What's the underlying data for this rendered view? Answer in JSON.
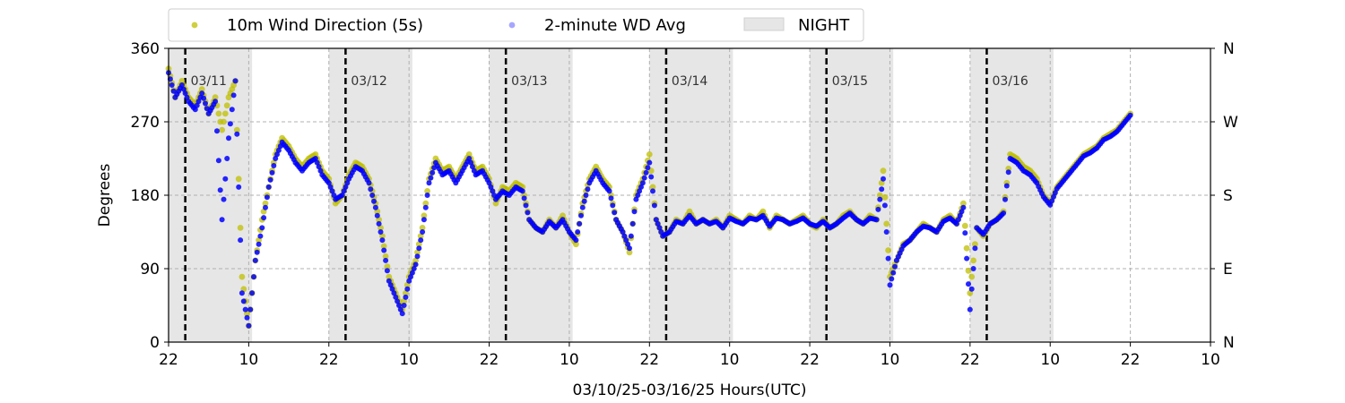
{
  "chart_data": {
    "type": "scatter",
    "xlabel": "03/10/25-03/16/25  Hours(UTC)",
    "ylabel": "Degrees",
    "x_unit": "hours",
    "xlim": [
      -2,
      154
    ],
    "ylim": [
      0,
      360
    ],
    "x_ticks": [
      -2,
      10,
      22,
      34,
      46,
      58,
      70,
      82,
      94,
      106,
      118,
      130,
      142,
      154
    ],
    "x_tick_labels": [
      "22",
      "10",
      "22",
      "10",
      "22",
      "10",
      "22",
      "10",
      "22",
      "10",
      "22",
      "10",
      "22",
      "10"
    ],
    "y_ticks": [
      0,
      90,
      180,
      270,
      360
    ],
    "y_tick_labels": [
      "0",
      "90",
      "180",
      "270",
      "360"
    ],
    "y2_tick_labels": [
      "N",
      "E",
      "S",
      "W",
      "N"
    ],
    "grid": true,
    "legend_position": "top",
    "night_bands": [
      [
        -2,
        10.5
      ],
      [
        22,
        34.5
      ],
      [
        46,
        58.5
      ],
      [
        70,
        82.5
      ],
      [
        94,
        106.5
      ],
      [
        118,
        130.5
      ]
    ],
    "day_markers": [
      {
        "x": 0.5,
        "label": "03/11"
      },
      {
        "x": 24.5,
        "label": "03/12"
      },
      {
        "x": 48.5,
        "label": "03/13"
      },
      {
        "x": 72.5,
        "label": "03/14"
      },
      {
        "x": 96.5,
        "label": "03/15"
      },
      {
        "x": 120.5,
        "label": "03/16"
      }
    ],
    "series": [
      {
        "name": "10m Wind Direction (5s)",
        "color": "#bfbf00",
        "points": [
          [
            -2,
            335
          ],
          [
            -1,
            300
          ],
          [
            0,
            320
          ],
          [
            1,
            300
          ],
          [
            2,
            290
          ],
          [
            3,
            310
          ],
          [
            4,
            280
          ],
          [
            5,
            300
          ],
          [
            6,
            260
          ],
          [
            7,
            300
          ],
          [
            8,
            320
          ],
          [
            9,
            80
          ],
          [
            10,
            20
          ],
          [
            11,
            100
          ],
          [
            12,
            150
          ],
          [
            13,
            190
          ],
          [
            14,
            230
          ],
          [
            15,
            250
          ],
          [
            16,
            240
          ],
          [
            17,
            225
          ],
          [
            18,
            215
          ],
          [
            19,
            225
          ],
          [
            20,
            230
          ],
          [
            21,
            210
          ],
          [
            22,
            200
          ],
          [
            23,
            170
          ],
          [
            24,
            180
          ],
          [
            25,
            205
          ],
          [
            26,
            220
          ],
          [
            27,
            215
          ],
          [
            28,
            200
          ],
          [
            29,
            170
          ],
          [
            30,
            130
          ],
          [
            31,
            80
          ],
          [
            32,
            60
          ],
          [
            33,
            40
          ],
          [
            34,
            80
          ],
          [
            35,
            100
          ],
          [
            36,
            140
          ],
          [
            37,
            200
          ],
          [
            38,
            225
          ],
          [
            39,
            210
          ],
          [
            40,
            215
          ],
          [
            41,
            200
          ],
          [
            42,
            215
          ],
          [
            43,
            230
          ],
          [
            44,
            210
          ],
          [
            45,
            215
          ],
          [
            46,
            200
          ],
          [
            47,
            170
          ],
          [
            48,
            190
          ],
          [
            49,
            185
          ],
          [
            50,
            195
          ],
          [
            51,
            190
          ],
          [
            52,
            150
          ],
          [
            53,
            140
          ],
          [
            54,
            135
          ],
          [
            55,
            150
          ],
          [
            56,
            140
          ],
          [
            57,
            155
          ],
          [
            58,
            135
          ],
          [
            59,
            120
          ],
          [
            60,
            170
          ],
          [
            61,
            200
          ],
          [
            62,
            215
          ],
          [
            63,
            200
          ],
          [
            64,
            190
          ],
          [
            65,
            150
          ],
          [
            66,
            135
          ],
          [
            67,
            110
          ],
          [
            68,
            180
          ],
          [
            69,
            200
          ],
          [
            70,
            230
          ],
          [
            71,
            150
          ],
          [
            72,
            130
          ],
          [
            73,
            135
          ],
          [
            74,
            150
          ],
          [
            75,
            145
          ],
          [
            76,
            160
          ],
          [
            77,
            145
          ],
          [
            78,
            150
          ],
          [
            79,
            145
          ],
          [
            80,
            150
          ],
          [
            81,
            140
          ],
          [
            82,
            155
          ],
          [
            83,
            150
          ],
          [
            84,
            145
          ],
          [
            85,
            155
          ],
          [
            86,
            150
          ],
          [
            87,
            160
          ],
          [
            88,
            140
          ],
          [
            89,
            155
          ],
          [
            90,
            150
          ],
          [
            91,
            145
          ],
          [
            92,
            150
          ],
          [
            93,
            155
          ],
          [
            94,
            145
          ],
          [
            95,
            140
          ],
          [
            96,
            150
          ],
          [
            97,
            140
          ],
          [
            98,
            145
          ],
          [
            99,
            155
          ],
          [
            100,
            160
          ],
          [
            101,
            150
          ],
          [
            102,
            145
          ],
          [
            103,
            155
          ],
          [
            104,
            150
          ],
          [
            105,
            210
          ],
          [
            106,
            80
          ],
          [
            107,
            100
          ],
          [
            108,
            120
          ],
          [
            109,
            125
          ],
          [
            110,
            135
          ],
          [
            111,
            145
          ],
          [
            112,
            140
          ],
          [
            113,
            135
          ],
          [
            114,
            150
          ],
          [
            115,
            155
          ],
          [
            116,
            145
          ],
          [
            117,
            170
          ],
          [
            118,
            60
          ],
          [
            119,
            140
          ],
          [
            120,
            130
          ],
          [
            121,
            145
          ],
          [
            122,
            150
          ],
          [
            123,
            160
          ],
          [
            124,
            230
          ],
          [
            125,
            225
          ],
          [
            126,
            215
          ],
          [
            127,
            210
          ],
          [
            128,
            200
          ],
          [
            129,
            180
          ],
          [
            130,
            170
          ],
          [
            131,
            190
          ],
          [
            132,
            200
          ],
          [
            133,
            210
          ],
          [
            134,
            220
          ],
          [
            135,
            230
          ],
          [
            136,
            235
          ],
          [
            137,
            240
          ],
          [
            138,
            250
          ],
          [
            139,
            255
          ],
          [
            140,
            260
          ],
          [
            141,
            270
          ],
          [
            142,
            280
          ]
        ]
      },
      {
        "name": "2-minute WD Avg",
        "color": "#0000ff",
        "points": [
          [
            -2,
            330
          ],
          [
            -1,
            300
          ],
          [
            0,
            315
          ],
          [
            1,
            295
          ],
          [
            2,
            285
          ],
          [
            3,
            305
          ],
          [
            4,
            280
          ],
          [
            5,
            295
          ],
          [
            6,
            150
          ],
          [
            7,
            250
          ],
          [
            8,
            320
          ],
          [
            9,
            60
          ],
          [
            10,
            20
          ],
          [
            11,
            100
          ],
          [
            12,
            140
          ],
          [
            13,
            190
          ],
          [
            14,
            225
          ],
          [
            15,
            245
          ],
          [
            16,
            235
          ],
          [
            17,
            220
          ],
          [
            18,
            210
          ],
          [
            19,
            220
          ],
          [
            20,
            225
          ],
          [
            21,
            205
          ],
          [
            22,
            195
          ],
          [
            23,
            175
          ],
          [
            24,
            180
          ],
          [
            25,
            200
          ],
          [
            26,
            215
          ],
          [
            27,
            210
          ],
          [
            28,
            195
          ],
          [
            29,
            165
          ],
          [
            30,
            125
          ],
          [
            31,
            75
          ],
          [
            32,
            55
          ],
          [
            33,
            35
          ],
          [
            34,
            75
          ],
          [
            35,
            95
          ],
          [
            36,
            135
          ],
          [
            37,
            195
          ],
          [
            38,
            220
          ],
          [
            39,
            205
          ],
          [
            40,
            210
          ],
          [
            41,
            195
          ],
          [
            42,
            210
          ],
          [
            43,
            225
          ],
          [
            44,
            205
          ],
          [
            45,
            210
          ],
          [
            46,
            195
          ],
          [
            47,
            175
          ],
          [
            48,
            185
          ],
          [
            49,
            180
          ],
          [
            50,
            190
          ],
          [
            51,
            185
          ],
          [
            52,
            150
          ],
          [
            53,
            140
          ],
          [
            54,
            135
          ],
          [
            55,
            148
          ],
          [
            56,
            140
          ],
          [
            57,
            150
          ],
          [
            58,
            135
          ],
          [
            59,
            125
          ],
          [
            60,
            165
          ],
          [
            61,
            195
          ],
          [
            62,
            210
          ],
          [
            63,
            195
          ],
          [
            64,
            185
          ],
          [
            65,
            150
          ],
          [
            66,
            135
          ],
          [
            67,
            115
          ],
          [
            68,
            175
          ],
          [
            69,
            195
          ],
          [
            70,
            220
          ],
          [
            71,
            150
          ],
          [
            72,
            130
          ],
          [
            73,
            135
          ],
          [
            74,
            148
          ],
          [
            75,
            145
          ],
          [
            76,
            155
          ],
          [
            77,
            145
          ],
          [
            78,
            150
          ],
          [
            79,
            145
          ],
          [
            80,
            148
          ],
          [
            81,
            140
          ],
          [
            82,
            152
          ],
          [
            83,
            148
          ],
          [
            84,
            145
          ],
          [
            85,
            152
          ],
          [
            86,
            150
          ],
          [
            87,
            155
          ],
          [
            88,
            142
          ],
          [
            89,
            152
          ],
          [
            90,
            150
          ],
          [
            91,
            145
          ],
          [
            92,
            148
          ],
          [
            93,
            152
          ],
          [
            94,
            145
          ],
          [
            95,
            142
          ],
          [
            96,
            148
          ],
          [
            97,
            140
          ],
          [
            98,
            145
          ],
          [
            99,
            152
          ],
          [
            100,
            158
          ],
          [
            101,
            150
          ],
          [
            102,
            145
          ],
          [
            103,
            152
          ],
          [
            104,
            150
          ],
          [
            105,
            200
          ],
          [
            106,
            70
          ],
          [
            107,
            100
          ],
          [
            108,
            118
          ],
          [
            109,
            125
          ],
          [
            110,
            135
          ],
          [
            111,
            142
          ],
          [
            112,
            140
          ],
          [
            113,
            135
          ],
          [
            114,
            148
          ],
          [
            115,
            152
          ],
          [
            116,
            145
          ],
          [
            117,
            165
          ],
          [
            118,
            40
          ],
          [
            119,
            140
          ],
          [
            120,
            132
          ],
          [
            121,
            145
          ],
          [
            122,
            150
          ],
          [
            123,
            158
          ],
          [
            124,
            225
          ],
          [
            125,
            220
          ],
          [
            126,
            210
          ],
          [
            127,
            205
          ],
          [
            128,
            195
          ],
          [
            129,
            178
          ],
          [
            130,
            168
          ],
          [
            131,
            188
          ],
          [
            132,
            198
          ],
          [
            133,
            208
          ],
          [
            134,
            218
          ],
          [
            135,
            228
          ],
          [
            136,
            232
          ],
          [
            137,
            238
          ],
          [
            138,
            248
          ],
          [
            139,
            252
          ],
          [
            140,
            258
          ],
          [
            141,
            268
          ],
          [
            142,
            278
          ]
        ]
      }
    ],
    "legend": [
      {
        "label": "10m Wind Direction (5s)",
        "color": "#bfbf00",
        "kind": "marker"
      },
      {
        "label": "2-minute WD Avg",
        "color": "#0000ff",
        "kind": "marker"
      },
      {
        "label": "NIGHT",
        "color": "#e6e6e6",
        "kind": "patch"
      }
    ]
  }
}
